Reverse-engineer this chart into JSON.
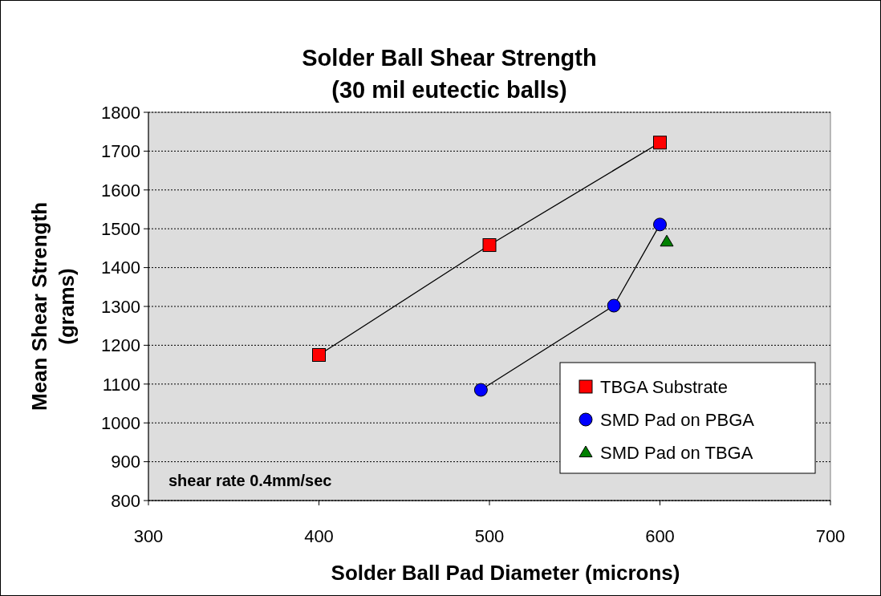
{
  "chart_data": {
    "type": "line",
    "title": "Solder Ball Shear Strength\n(30 mil eutectic balls)",
    "xlabel": "Solder Ball Pad Diameter (microns)",
    "ylabel": "Mean Shear Strength (grams)",
    "series": [
      {
        "name": "TBGA Substrate",
        "color": "#ff0000",
        "marker": "square",
        "x": [
          400,
          500,
          600
        ],
        "values": [
          1175,
          1458,
          1722
        ]
      },
      {
        "name": "SMD Pad on PBGA",
        "color": "#0000ff",
        "marker": "circle",
        "x": [
          495,
          573,
          600
        ],
        "values": [
          1085,
          1302,
          1511
        ]
      },
      {
        "name": "SMD Pad on TBGA",
        "type": "scatter",
        "color": "#008000",
        "marker": "triangle",
        "x": [
          604
        ],
        "values": [
          1467
        ]
      }
    ],
    "xlim": [
      300,
      700
    ],
    "xticks": [
      300,
      400,
      500,
      600,
      700
    ],
    "ylim": [
      800,
      1800
    ],
    "yticks": [
      800,
      900,
      1000,
      1100,
      1200,
      1300,
      1400,
      1500,
      1600,
      1700,
      1800
    ],
    "grid": "y",
    "legend": "bottom right",
    "annotations": [
      "shear rate 0.4mm/sec"
    ]
  }
}
